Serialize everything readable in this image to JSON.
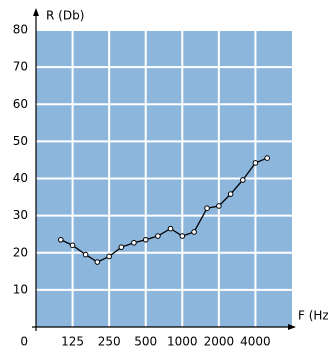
{
  "chart_data": {
    "type": "line",
    "x_label": "F (Hz)",
    "y_label": "R (Db)",
    "x": [
      100,
      125,
      160,
      200,
      250,
      315,
      400,
      500,
      630,
      800,
      1000,
      1250,
      1600,
      2000,
      2500,
      3150,
      4000,
      5000
    ],
    "series": [
      {
        "name": "R",
        "color": "#000000",
        "values": [
          23.5,
          22,
          19.5,
          17.5,
          19,
          21.5,
          22.7,
          23.5,
          24.5,
          26.5,
          24.5,
          25.6,
          32,
          32.6,
          35.8,
          39.6,
          44.2,
          45.5
        ]
      }
    ],
    "xlim": [
      62.5,
      8000
    ],
    "xticks": [
      125,
      250,
      500,
      1000,
      2000,
      4000
    ],
    "xscale": "log",
    "ylim": [
      0,
      80
    ],
    "yticks": [
      0,
      10,
      20,
      30,
      40,
      50,
      60,
      70,
      80
    ],
    "grid": true,
    "background": "#8db6dd"
  }
}
